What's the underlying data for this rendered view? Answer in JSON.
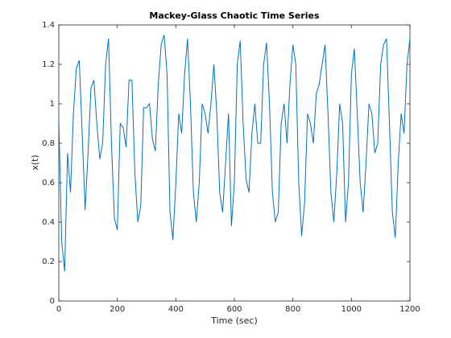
{
  "chart_data": {
    "type": "line",
    "title": "Mackey-Glass Chaotic Time Series",
    "xlabel": "Time (sec)",
    "ylabel": "x(t)",
    "color": "#0072bd",
    "x": [
      0,
      10,
      20,
      30,
      40,
      50,
      60,
      70,
      80,
      90,
      100,
      110,
      120,
      130,
      140,
      150,
      160,
      170,
      180,
      190,
      200,
      210,
      220,
      230,
      240,
      250,
      260,
      270,
      280,
      290,
      300,
      310,
      320,
      330,
      340,
      350,
      360,
      370,
      380,
      390,
      400,
      410,
      420,
      430,
      440,
      450,
      460,
      470,
      480,
      490,
      500,
      510,
      520,
      530,
      540,
      550,
      560,
      570,
      580,
      590,
      600,
      610,
      620,
      630,
      640,
      650,
      660,
      670,
      680,
      690,
      700,
      710,
      720,
      730,
      740,
      750,
      760,
      770,
      780,
      790,
      800,
      810,
      820,
      830,
      840,
      850,
      860,
      870,
      880,
      890,
      900,
      910,
      920,
      930,
      940,
      950,
      960,
      970,
      980,
      990,
      1000,
      1010,
      1020,
      1030,
      1040,
      1050,
      1060,
      1070,
      1080,
      1090,
      1100,
      1110,
      1120,
      1130,
      1140,
      1150,
      1160,
      1170,
      1180,
      1190,
      1200
    ],
    "values": [
      0.92,
      0.3,
      0.15,
      0.75,
      0.55,
      0.95,
      1.18,
      1.22,
      0.85,
      0.46,
      0.75,
      1.08,
      1.12,
      0.9,
      0.72,
      0.8,
      1.2,
      1.33,
      0.8,
      0.42,
      0.36,
      0.9,
      0.88,
      0.78,
      1.12,
      1.12,
      0.65,
      0.4,
      0.48,
      0.98,
      0.98,
      1.0,
      0.82,
      0.76,
      1.1,
      1.3,
      1.35,
      1.15,
      0.45,
      0.31,
      0.6,
      0.95,
      0.85,
      1.15,
      1.33,
      1.0,
      0.55,
      0.4,
      0.6,
      1.0,
      0.95,
      0.85,
      1.0,
      1.2,
      0.95,
      0.55,
      0.45,
      0.7,
      0.95,
      0.38,
      0.6,
      1.2,
      1.32,
      0.9,
      0.62,
      0.55,
      0.85,
      1.0,
      0.8,
      0.8,
      1.2,
      1.31,
      1.0,
      0.55,
      0.4,
      0.45,
      0.9,
      1.0,
      0.8,
      1.1,
      1.3,
      1.2,
      0.6,
      0.33,
      0.5,
      0.95,
      0.9,
      0.8,
      1.05,
      1.1,
      1.2,
      1.3,
      0.95,
      0.55,
      0.4,
      0.65,
      1.0,
      0.9,
      0.4,
      0.6,
      1.15,
      1.28,
      0.95,
      0.6,
      0.45,
      0.7,
      1.0,
      0.95,
      0.75,
      0.8,
      1.2,
      1.3,
      1.33,
      0.9,
      0.45,
      0.32,
      0.7,
      0.95,
      0.85,
      1.2,
      1.33
    ],
    "xlim": [
      0,
      1200
    ],
    "xticks": [
      0,
      200,
      400,
      600,
      800,
      1000,
      1200
    ],
    "ylim": [
      0,
      1.4
    ],
    "yticks": [
      0,
      0.2,
      0.4,
      0.6,
      0.8,
      1,
      1.2,
      1.4
    ]
  }
}
